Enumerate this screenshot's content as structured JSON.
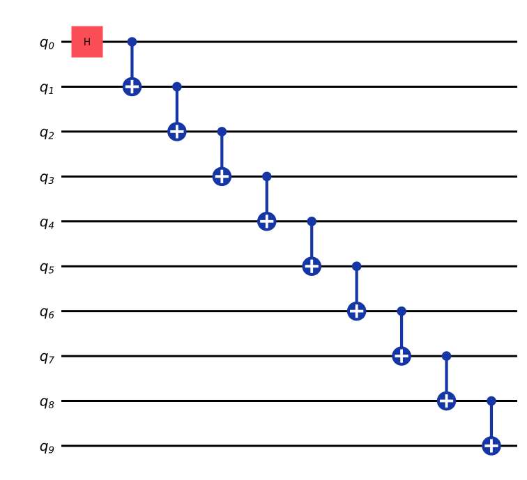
{
  "page": {
    "background": "#ffffff"
  },
  "circuit": {
    "type": "quantum-circuit",
    "num_qubits": 10,
    "qubits": [
      {
        "name": "q0",
        "base": "q",
        "sub": "0"
      },
      {
        "name": "q1",
        "base": "q",
        "sub": "1"
      },
      {
        "name": "q2",
        "base": "q",
        "sub": "2"
      },
      {
        "name": "q3",
        "base": "q",
        "sub": "3"
      },
      {
        "name": "q4",
        "base": "q",
        "sub": "4"
      },
      {
        "name": "q5",
        "base": "q",
        "sub": "5"
      },
      {
        "name": "q6",
        "base": "q",
        "sub": "6"
      },
      {
        "name": "q7",
        "base": "q",
        "sub": "7"
      },
      {
        "name": "q8",
        "base": "q",
        "sub": "8"
      },
      {
        "name": "q9",
        "base": "q",
        "sub": "9"
      }
    ],
    "colors": {
      "wire": "#000000",
      "label_text": "#000000",
      "h_gate_fill": "#FA4D56",
      "h_gate_text": "#000000",
      "cnot_blue": "#1636A6",
      "target_cross": "#ffffff"
    },
    "gates": [
      {
        "type": "h",
        "label": "H",
        "qubit": 0,
        "column": 0
      },
      {
        "type": "cx",
        "control": 0,
        "target": 1,
        "column": 1
      },
      {
        "type": "cx",
        "control": 1,
        "target": 2,
        "column": 2
      },
      {
        "type": "cx",
        "control": 2,
        "target": 3,
        "column": 3
      },
      {
        "type": "cx",
        "control": 3,
        "target": 4,
        "column": 4
      },
      {
        "type": "cx",
        "control": 4,
        "target": 5,
        "column": 5
      },
      {
        "type": "cx",
        "control": 5,
        "target": 6,
        "column": 6
      },
      {
        "type": "cx",
        "control": 6,
        "target": 7,
        "column": 7
      },
      {
        "type": "cx",
        "control": 7,
        "target": 8,
        "column": 8
      },
      {
        "type": "cx",
        "control": 8,
        "target": 9,
        "column": 9
      }
    ]
  }
}
